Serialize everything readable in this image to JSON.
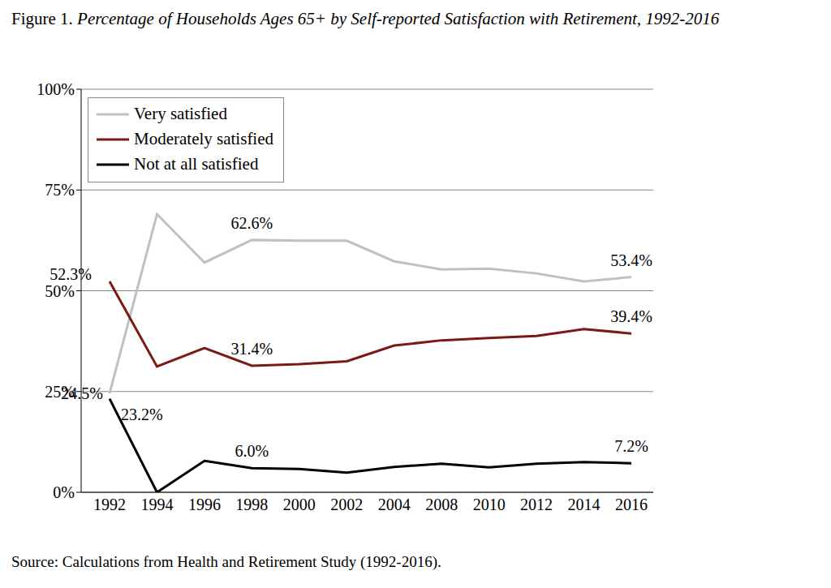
{
  "chart_data": {
    "type": "line",
    "title": "Figure 1. Percentage of Households Ages 65+ by Self-reported Satisfaction with Retirement, 1992-2016",
    "source": "Source: Calculations from Health and Retirement Study (1992-2016).",
    "categories": [
      "1992",
      "1994",
      "1996",
      "1998",
      "2000",
      "2002",
      "2004",
      "2008",
      "2010",
      "2012",
      "2014",
      "2016"
    ],
    "series": [
      {
        "name": "Very satisfied",
        "color": "#c0c0c0",
        "values": [
          24.5,
          69,
          57,
          62.6,
          62.4,
          62.4,
          57.3,
          55.3,
          55.5,
          54.3,
          52.3,
          53.4
        ],
        "value_labels": [
          "24.5%",
          null,
          null,
          "62.6%",
          null,
          null,
          null,
          null,
          null,
          null,
          null,
          "53.4%"
        ]
      },
      {
        "name": "Moderately satisfied",
        "color": "#7b1a14",
        "values": [
          52.3,
          31.2,
          35.8,
          31.4,
          31.8,
          32.5,
          36.4,
          37.7,
          38.3,
          38.8,
          40.5,
          39.4
        ],
        "value_labels": [
          "52.3%",
          null,
          null,
          "31.4%",
          null,
          null,
          null,
          null,
          null,
          null,
          null,
          "39.4%"
        ]
      },
      {
        "name": "Not at all satisfied",
        "color": "#000000",
        "values": [
          23.2,
          0,
          7.8,
          6.0,
          5.8,
          4.9,
          6.3,
          7.1,
          6.2,
          7.1,
          7.5,
          7.2
        ],
        "value_labels": [
          "23.2%",
          null,
          null,
          "6.0%",
          null,
          null,
          null,
          null,
          null,
          null,
          null,
          "7.2%"
        ]
      }
    ],
    "ylim": [
      0,
      100
    ],
    "yticks": [
      {
        "value": 0,
        "label": "0%"
      },
      {
        "value": 25,
        "label": "25%"
      },
      {
        "value": 50,
        "label": "50%"
      },
      {
        "value": 75,
        "label": "75%"
      },
      {
        "value": 100,
        "label": "100%"
      }
    ],
    "grid": true,
    "legend": "upper left",
    "data_labels": true
  }
}
